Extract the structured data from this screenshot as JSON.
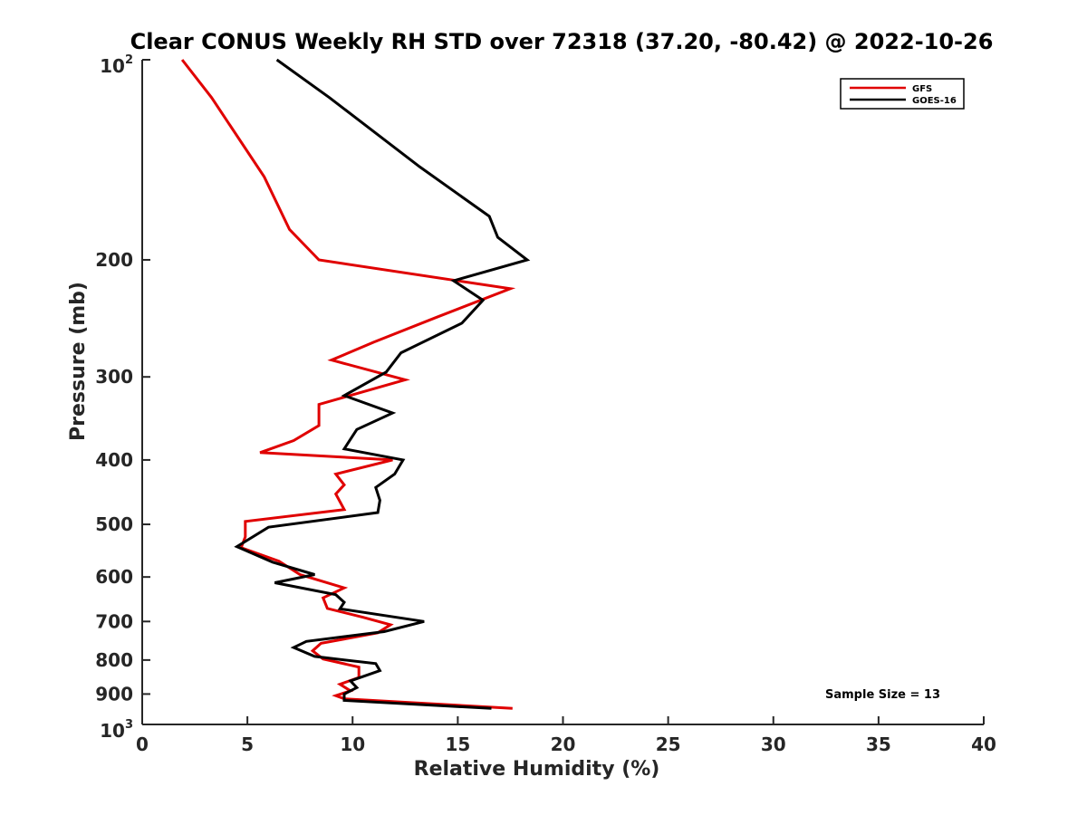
{
  "chart_data": {
    "type": "line",
    "title": "Clear CONUS Weekly RH STD over 72318 (37.20, -80.42) @ 2022-10-26",
    "xlabel": "Relative Humidity (%)",
    "ylabel": "Pressure (mb)",
    "xlim": [
      0,
      40
    ],
    "ylim": [
      100,
      1000
    ],
    "yscale": "log",
    "y_reversed": true,
    "grid": false,
    "legend_position": "top-right",
    "x_ticks": [
      "0",
      "5",
      "10",
      "15",
      "20",
      "25",
      "30",
      "35",
      "40"
    ],
    "y_ticks": [
      {
        "value": 100,
        "label": "10",
        "sup": "2"
      },
      {
        "value": 200,
        "label": "200",
        "sup": ""
      },
      {
        "value": 300,
        "label": "300",
        "sup": ""
      },
      {
        "value": 400,
        "label": "400",
        "sup": ""
      },
      {
        "value": 500,
        "label": "500",
        "sup": ""
      },
      {
        "value": 600,
        "label": "600",
        "sup": ""
      },
      {
        "value": 700,
        "label": "700",
        "sup": ""
      },
      {
        "value": 800,
        "label": "800",
        "sup": ""
      },
      {
        "value": 900,
        "label": "900",
        "sup": ""
      },
      {
        "value": 1000,
        "label": "10",
        "sup": "3"
      }
    ],
    "series": [
      {
        "name": "GFS",
        "color": "#e00000",
        "x": [
          1.9,
          3.3,
          5.8,
          7.0,
          8.4,
          17.5,
          14.0,
          11.0,
          9.0,
          12.5,
          8.4,
          8.4,
          7.2,
          5.6,
          11.9,
          9.2,
          9.6,
          9.2,
          9.6,
          4.9,
          4.9,
          4.7,
          6.5,
          7.5,
          9.6,
          8.6,
          8.8,
          10.5,
          11.8,
          11.2,
          8.5,
          8.1,
          8.6,
          10.3,
          10.3,
          9.4,
          9.9,
          9.2,
          9.6,
          17.6
        ],
        "y": [
          100,
          114,
          150,
          180,
          200,
          221,
          244,
          266,
          283,
          303,
          330,
          355,
          374,
          390,
          400,
          420,
          436,
          450,
          475,
          495,
          522,
          542,
          568,
          595,
          623,
          645,
          669,
          690,
          708,
          728,
          755,
          775,
          797,
          820,
          850,
          870,
          890,
          905,
          915,
          946
        ]
      },
      {
        "name": "GOES-16",
        "color": "#000000",
        "x": [
          6.4,
          8.9,
          13.2,
          16.5,
          16.9,
          18.3,
          14.8,
          16.2,
          15.2,
          12.3,
          11.6,
          9.6,
          11.9,
          10.2,
          9.6,
          12.4,
          12.0,
          11.1,
          11.3,
          11.2,
          6.0,
          4.5,
          6.2,
          8.2,
          6.3,
          9.2,
          9.6,
          9.4,
          13.4,
          11.5,
          7.8,
          7.2,
          8.2,
          11.1,
          11.3,
          9.9,
          10.2,
          9.6,
          9.6,
          16.6
        ],
        "y": [
          100,
          114,
          145,
          172,
          185,
          200,
          215,
          230,
          249,
          276,
          295,
          320,
          340,
          360,
          385,
          400,
          420,
          440,
          460,
          480,
          505,
          540,
          570,
          595,
          612,
          638,
          655,
          670,
          700,
          725,
          750,
          766,
          790,
          810,
          830,
          860,
          880,
          900,
          920,
          946
        ]
      }
    ],
    "annotations": [
      "Sample Size = 13"
    ]
  }
}
